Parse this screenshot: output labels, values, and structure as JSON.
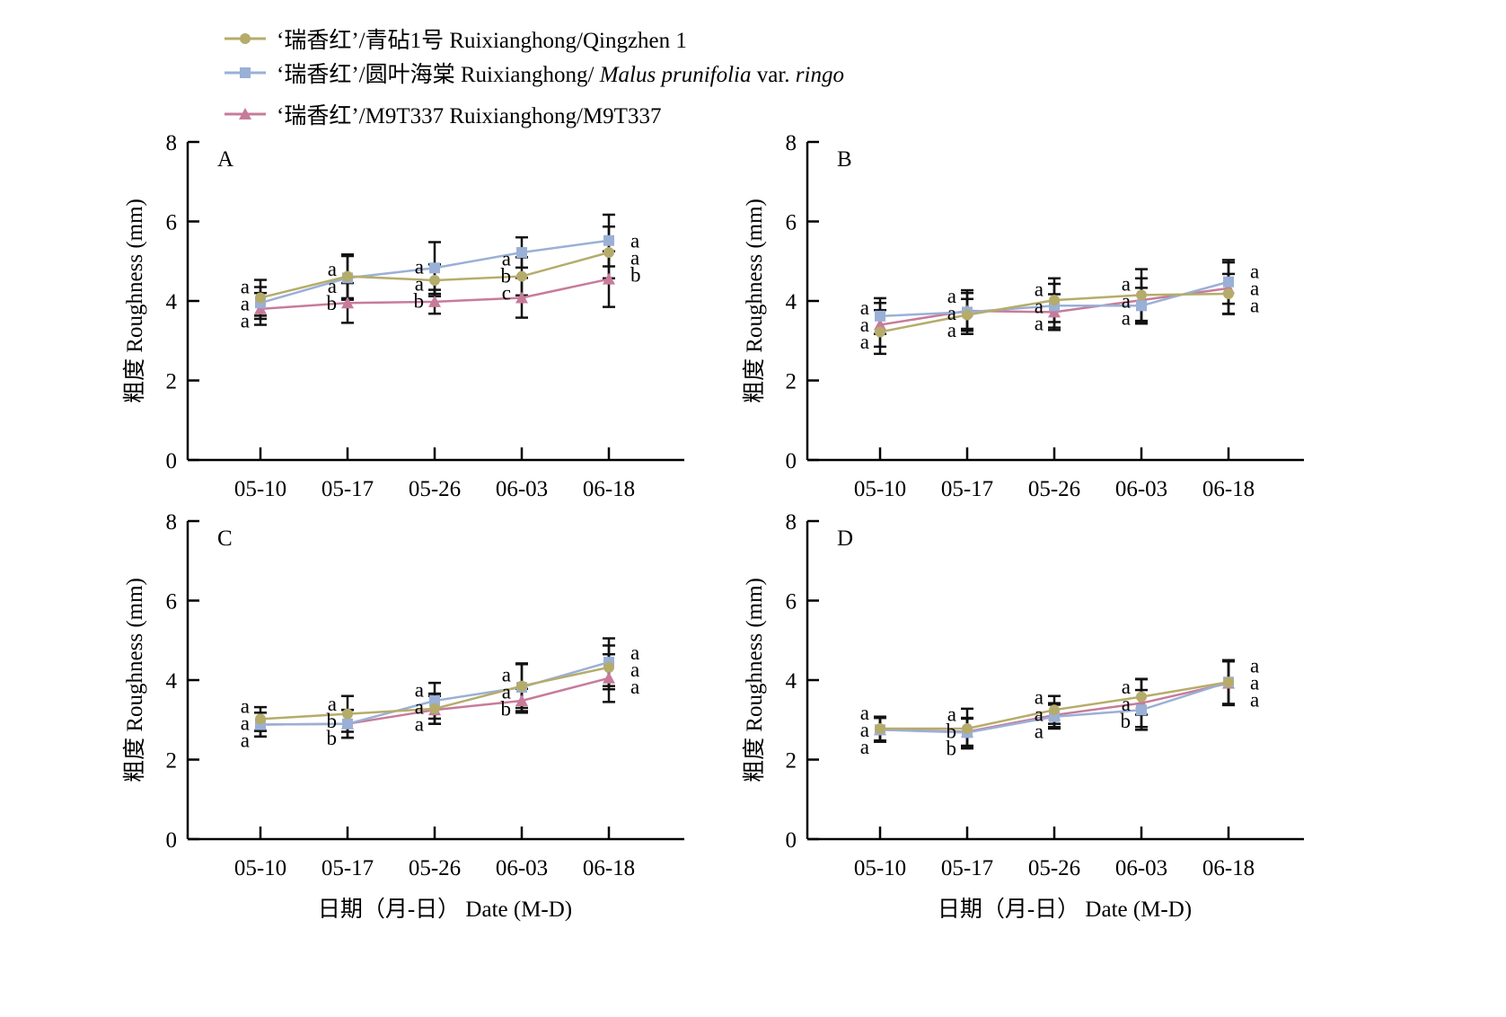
{
  "legend": [
    {
      "label_parts": [
        "‘瑞香红’/青砧1号 Ruixianghong/Qingzhen 1"
      ],
      "italic_parts": [],
      "color": "#b5ac6b",
      "marker": "circle"
    },
    {
      "label_parts": [
        "‘瑞香红’/圆叶海棠 Ruixianghong/ ",
        "Malus prunifolia",
        " var. ",
        "ringo"
      ],
      "italic_parts": [
        1,
        3
      ],
      "color": "#9ab0d6",
      "marker": "square"
    },
    {
      "label_parts": [
        "‘瑞香红’/M9T337 Ruixianghong/M9T337"
      ],
      "italic_parts": [],
      "color": "#c77b9a",
      "marker": "triangle"
    }
  ],
  "chart_data": [
    {
      "type": "line",
      "panel_label": "A",
      "categories": [
        "05-10",
        "05-17",
        "05-26",
        "06-03",
        "06-18"
      ],
      "ylabel": "粗度 Roughness (mm)",
      "xlabel": "",
      "ylim": [
        0,
        8
      ],
      "yticks": [
        0,
        2,
        4,
        6,
        8
      ],
      "series": [
        {
          "name": "‘瑞香红’/青砧1号 Ruixianghong/Qingzhen 1",
          "values": [
            4.08,
            4.62,
            4.52,
            4.62,
            5.22
          ],
          "err": [
            0.45,
            0.55,
            0.4,
            0.48,
            0.65
          ],
          "letters": [
            "a",
            "a",
            "a",
            "b",
            "a"
          ]
        },
        {
          "name": "‘瑞香红’/圆叶海棠 Ruixianghong/Malus prunifolia var. ringo",
          "values": [
            3.95,
            4.58,
            4.83,
            5.22,
            5.52
          ],
          "err": [
            0.4,
            0.55,
            0.65,
            0.38,
            0.65
          ],
          "letters": [
            "a",
            "a",
            "a",
            "a",
            "a"
          ]
        },
        {
          "name": "‘瑞香红’/M9T337 Ruixianghong/M9T337",
          "values": [
            3.8,
            3.95,
            3.98,
            4.08,
            4.55
          ],
          "err": [
            0.4,
            0.5,
            0.3,
            0.5,
            0.7
          ],
          "letters": [
            "a",
            "b",
            "b",
            "c",
            "b"
          ]
        }
      ]
    },
    {
      "type": "line",
      "panel_label": "B",
      "categories": [
        "05-10",
        "05-17",
        "05-26",
        "06-03",
        "06-18"
      ],
      "ylabel": "粗度 Roughness (mm)",
      "xlabel": "",
      "ylim": [
        0,
        8
      ],
      "yticks": [
        0,
        2,
        4,
        6,
        8
      ],
      "series": [
        {
          "name": "‘瑞香红’/青砧1号 Ruixianghong/Qingzhen 1",
          "values": [
            3.22,
            3.65,
            4.02,
            4.15,
            4.18
          ],
          "err": [
            0.55,
            0.4,
            0.55,
            0.65,
            0.5
          ],
          "letters": [
            "a",
            "a",
            "a",
            "a",
            "a"
          ]
        },
        {
          "name": "‘瑞香红’/圆叶海棠 Ruixianghong/Malus prunifolia var. ringo",
          "values": [
            3.62,
            3.72,
            3.88,
            3.88,
            4.48
          ],
          "err": [
            0.45,
            0.55,
            0.55,
            0.45,
            0.55
          ],
          "letters": [
            "a",
            "a",
            "a",
            "a",
            "a"
          ]
        },
        {
          "name": "‘瑞香红’/M9T337 Ruixianghong/M9T337",
          "values": [
            3.4,
            3.75,
            3.72,
            4.02,
            4.32
          ],
          "err": [
            0.55,
            0.45,
            0.45,
            0.55,
            0.65
          ],
          "letters": [
            "a",
            "a",
            "a",
            "a",
            "a"
          ]
        }
      ]
    },
    {
      "type": "line",
      "panel_label": "C",
      "categories": [
        "05-10",
        "05-17",
        "05-26",
        "06-03",
        "06-18"
      ],
      "ylabel": "粗度 Roughness (mm)",
      "xlabel": "日期（月-日） Date (M-D)",
      "ylim": [
        0,
        8
      ],
      "yticks": [
        0,
        2,
        4,
        6,
        8
      ],
      "series": [
        {
          "name": "‘瑞香红’/青砧1号 Ruixianghong/Qingzhen 1",
          "values": [
            3.02,
            3.15,
            3.28,
            3.85,
            4.32
          ],
          "err": [
            0.3,
            0.45,
            0.38,
            0.55,
            0.55
          ],
          "letters": [
            "a",
            "a",
            "a",
            "a",
            "a"
          ]
        },
        {
          "name": "‘瑞香红’/圆叶海棠 Ruixianghong/Malus prunifolia var. ringo",
          "values": [
            2.88,
            2.9,
            3.48,
            3.82,
            4.45
          ],
          "err": [
            0.3,
            0.35,
            0.45,
            0.6,
            0.6
          ],
          "letters": [
            "a",
            "b",
            "a",
            "a",
            "a"
          ]
        },
        {
          "name": "‘瑞香红’/M9T337 Ruixianghong/M9T337",
          "values": [
            2.88,
            2.9,
            3.25,
            3.48,
            4.05
          ],
          "err": [
            0.3,
            0.35,
            0.35,
            0.3,
            0.6
          ],
          "letters": [
            "a",
            "b",
            "a",
            "b",
            "a"
          ]
        }
      ]
    },
    {
      "type": "line",
      "panel_label": "D",
      "categories": [
        "05-10",
        "05-17",
        "05-26",
        "06-03",
        "06-18"
      ],
      "ylabel": "粗度 Roughness (mm)",
      "xlabel": "日期（月-日） Date (M-D)",
      "ylim": [
        0,
        8
      ],
      "yticks": [
        0,
        2,
        4,
        6,
        8
      ],
      "series": [
        {
          "name": "‘瑞香红’/青砧1号 Ruixianghong/Qingzhen 1",
          "values": [
            2.78,
            2.78,
            3.25,
            3.58,
            3.95
          ],
          "err": [
            0.3,
            0.5,
            0.35,
            0.45,
            0.55
          ],
          "letters": [
            "a",
            "a",
            "a",
            "a",
            "a"
          ]
        },
        {
          "name": "‘瑞香红’/圆叶海棠 Ruixianghong/Malus prunifolia var. ringo",
          "values": [
            2.75,
            2.68,
            3.08,
            3.25,
            3.95
          ],
          "err": [
            0.3,
            0.35,
            0.3,
            0.5,
            0.55
          ],
          "letters": [
            "a",
            "b",
            "a",
            "b",
            "a"
          ]
        },
        {
          "name": "‘瑞香红’/M9T337 Ruixianghong/M9T337",
          "values": [
            2.75,
            2.7,
            3.12,
            3.42,
            3.92
          ],
          "err": [
            0.3,
            0.35,
            0.3,
            0.6,
            0.55
          ],
          "letters": [
            "a",
            "b",
            "a",
            "a",
            "a"
          ]
        }
      ]
    }
  ]
}
